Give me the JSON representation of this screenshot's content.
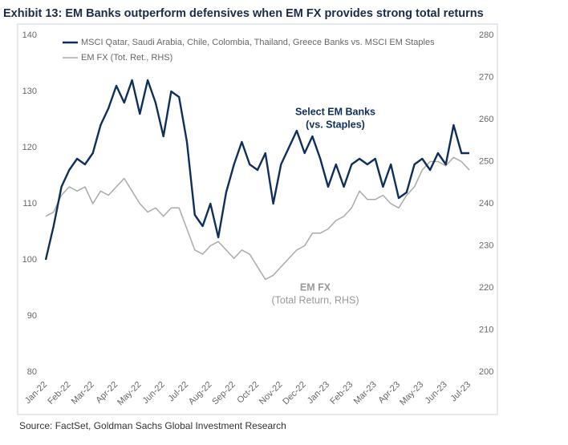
{
  "chart_data": {
    "type": "line",
    "title": "Exhibit 13: EM Banks outperform defensives when EM FX provides strong total returns",
    "source": "Source: FactSet, Goldman Sachs Global Investment Research",
    "annotations": [
      "Select EM Banks",
      "(vs. Staples)",
      "EM FX",
      "(Total Return, RHS)"
    ],
    "categories": [
      "Jan-22",
      null,
      null,
      "Feb-22",
      null,
      null,
      "Mar-22",
      null,
      null,
      "Apr-22",
      null,
      null,
      "May-22",
      null,
      null,
      "Jun-22",
      null,
      null,
      "Jul-22",
      null,
      null,
      "Aug-22",
      null,
      null,
      "Sep-22",
      null,
      null,
      "Oct-22",
      null,
      null,
      "Nov-22",
      null,
      null,
      "Dec-22",
      null,
      null,
      "Jan-23",
      null,
      null,
      "Feb-23",
      null,
      null,
      "Mar-23",
      null,
      null,
      "Apr-23",
      null,
      null,
      "May-23",
      null,
      null,
      "Jun-23",
      null,
      null,
      "Jul-23"
    ],
    "series": [
      {
        "name": "MSCI Qatar, Saudi Arabia, Chile, Colombia, Thailand, Greece Banks vs. MSCI EM Staples",
        "color": "#0d2f5a",
        "values": [
          100,
          106,
          113,
          116,
          118,
          117,
          119,
          124,
          127,
          131,
          128,
          132,
          126,
          132,
          128,
          122,
          130,
          129,
          121,
          108,
          106,
          110,
          104,
          112,
          117,
          121,
          117,
          116,
          119,
          110,
          117,
          120,
          123,
          119,
          122,
          118,
          113,
          117,
          113,
          117,
          118,
          117,
          118,
          113,
          117,
          111,
          112,
          117,
          118,
          116,
          119,
          117,
          124,
          119,
          119
        ]
      },
      {
        "name": "EM FX (Tot. Ret., RHS)",
        "color": "#aaaaaa",
        "axis": "y2",
        "values": [
          237,
          238,
          242,
          244,
          243,
          244,
          240,
          243,
          242,
          244,
          246,
          243,
          240,
          238,
          239,
          237,
          239,
          239,
          234,
          229,
          228,
          230,
          231,
          229,
          227,
          229,
          228,
          225,
          222,
          223,
          225,
          227,
          229,
          230,
          233,
          233,
          234,
          236,
          237,
          239,
          243,
          241,
          241,
          242,
          240,
          239,
          242,
          244,
          248,
          250,
          250,
          249,
          251,
          250,
          248
        ]
      }
    ],
    "ylim": [
      80,
      140
    ],
    "yticks": [
      80,
      90,
      100,
      110,
      120,
      130,
      140
    ],
    "y2lim": [
      200,
      280
    ],
    "y2ticks": [
      200,
      210,
      220,
      230,
      240,
      250,
      260,
      270,
      280
    ],
    "grid": false,
    "legend": "top-left"
  }
}
